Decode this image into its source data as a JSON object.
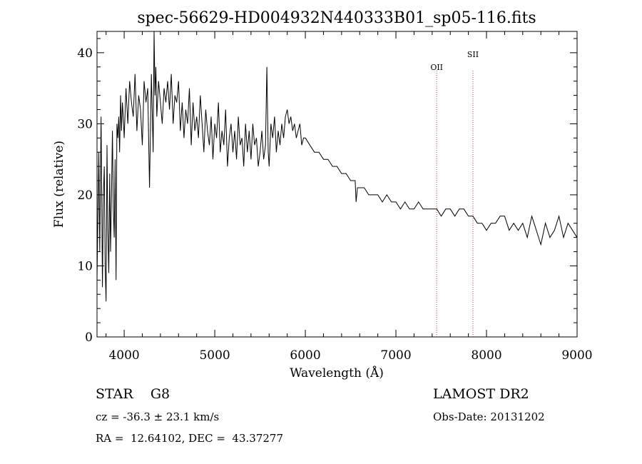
{
  "chart_data": {
    "type": "line",
    "title": "spec-56629-HD004932N440333B01_sp05-116.fits",
    "xlabel": "Wavelength (Å)",
    "ylabel": "Flux (relative)",
    "xlim": [
      3700,
      9000
    ],
    "ylim": [
      0,
      43
    ],
    "x_ticks": [
      "4000",
      "5000",
      "6000",
      "7000",
      "8000",
      "9000"
    ],
    "y_ticks": [
      "0",
      "10",
      "20",
      "30",
      "40"
    ],
    "lines": [
      {
        "label": "OII",
        "x": 7450
      },
      {
        "label": "SII",
        "x": 7850
      }
    ],
    "series": [
      {
        "name": "flux",
        "x": [
          3700,
          3720,
          3730,
          3745,
          3760,
          3770,
          3780,
          3790,
          3800,
          3810,
          3820,
          3830,
          3840,
          3850,
          3860,
          3870,
          3880,
          3890,
          3900,
          3910,
          3920,
          3930,
          3940,
          3950,
          3960,
          3970,
          3980,
          3990,
          4000,
          4020,
          4040,
          4060,
          4080,
          4100,
          4120,
          4140,
          4160,
          4180,
          4200,
          4220,
          4240,
          4260,
          4280,
          4300,
          4320,
          4330,
          4340,
          4350,
          4360,
          4380,
          4400,
          4420,
          4440,
          4460,
          4480,
          4500,
          4520,
          4540,
          4560,
          4580,
          4600,
          4620,
          4640,
          4660,
          4680,
          4700,
          4720,
          4740,
          4760,
          4780,
          4800,
          4820,
          4840,
          4860,
          4880,
          4900,
          4920,
          4940,
          4960,
          4980,
          5000,
          5020,
          5040,
          5060,
          5080,
          5100,
          5120,
          5140,
          5160,
          5180,
          5200,
          5220,
          5240,
          5260,
          5280,
          5300,
          5320,
          5340,
          5360,
          5380,
          5400,
          5420,
          5440,
          5460,
          5480,
          5500,
          5520,
          5540,
          5560,
          5575,
          5590,
          5600,
          5620,
          5640,
          5660,
          5680,
          5700,
          5720,
          5740,
          5760,
          5780,
          5800,
          5820,
          5840,
          5860,
          5880,
          5900,
          5920,
          5940,
          5960,
          5980,
          6000,
          6050,
          6100,
          6150,
          6200,
          6250,
          6300,
          6350,
          6400,
          6450,
          6500,
          6550,
          6560,
          6575,
          6600,
          6650,
          6700,
          6750,
          6800,
          6850,
          6900,
          6950,
          7000,
          7050,
          7100,
          7150,
          7200,
          7250,
          7300,
          7350,
          7400,
          7450,
          7500,
          7550,
          7600,
          7650,
          7700,
          7750,
          7800,
          7850,
          7900,
          7950,
          8000,
          8050,
          8100,
          8150,
          8200,
          8250,
          8300,
          8350,
          8400,
          8450,
          8500,
          8550,
          8600,
          8650,
          8700,
          8750,
          8800,
          8850,
          8900,
          8950,
          9000
        ],
        "y": [
          8,
          26,
          12,
          31,
          7,
          20,
          24,
          10,
          5,
          27,
          15,
          9,
          23,
          12,
          20,
          29,
          18,
          14,
          25,
          8,
          30,
          28,
          31,
          26,
          34,
          29,
          33,
          31,
          28,
          35,
          30,
          36,
          33,
          31,
          37,
          29,
          34,
          32,
          27,
          36,
          33,
          35,
          21,
          37,
          26,
          43,
          34,
          38,
          31,
          36,
          33,
          30,
          35,
          33,
          36,
          32,
          37,
          30,
          34,
          33,
          36,
          29,
          33,
          28,
          32,
          30,
          35,
          27,
          33,
          29,
          31,
          28,
          34,
          30,
          26,
          32,
          29,
          27,
          31,
          25,
          30,
          28,
          33,
          26,
          29,
          27,
          32,
          24,
          28,
          30,
          26,
          29,
          25,
          31,
          27,
          28,
          24,
          30,
          26,
          29,
          25,
          30,
          27,
          28,
          24,
          26,
          29,
          25,
          27,
          38,
          26,
          24,
          30,
          28,
          31,
          26,
          29,
          27,
          30,
          28,
          31,
          32,
          30,
          31,
          29,
          30,
          28,
          29,
          30,
          27,
          28,
          28,
          27,
          26,
          26,
          25,
          25,
          24,
          24,
          23,
          23,
          22,
          22,
          19,
          21,
          21,
          21,
          20,
          20,
          20,
          19,
          20,
          19,
          19,
          18,
          19,
          18,
          18,
          19,
          18,
          18,
          18,
          18,
          17,
          18,
          18,
          17,
          18,
          18,
          17,
          17,
          16,
          16,
          15,
          16,
          16,
          17,
          17,
          15,
          16,
          15,
          16,
          14,
          17,
          15,
          13,
          16,
          14,
          15,
          17,
          14,
          16,
          15,
          14
        ]
      }
    ]
  },
  "footer": {
    "classification": "STAR    G8",
    "redshift": "cz = -36.3 ± 23.1 km/s",
    "coordinates": "RA =  12.64102, DEC =  43.37277",
    "survey": "LAMOST DR2",
    "obs_date": "Obs-Date: 20131202"
  }
}
